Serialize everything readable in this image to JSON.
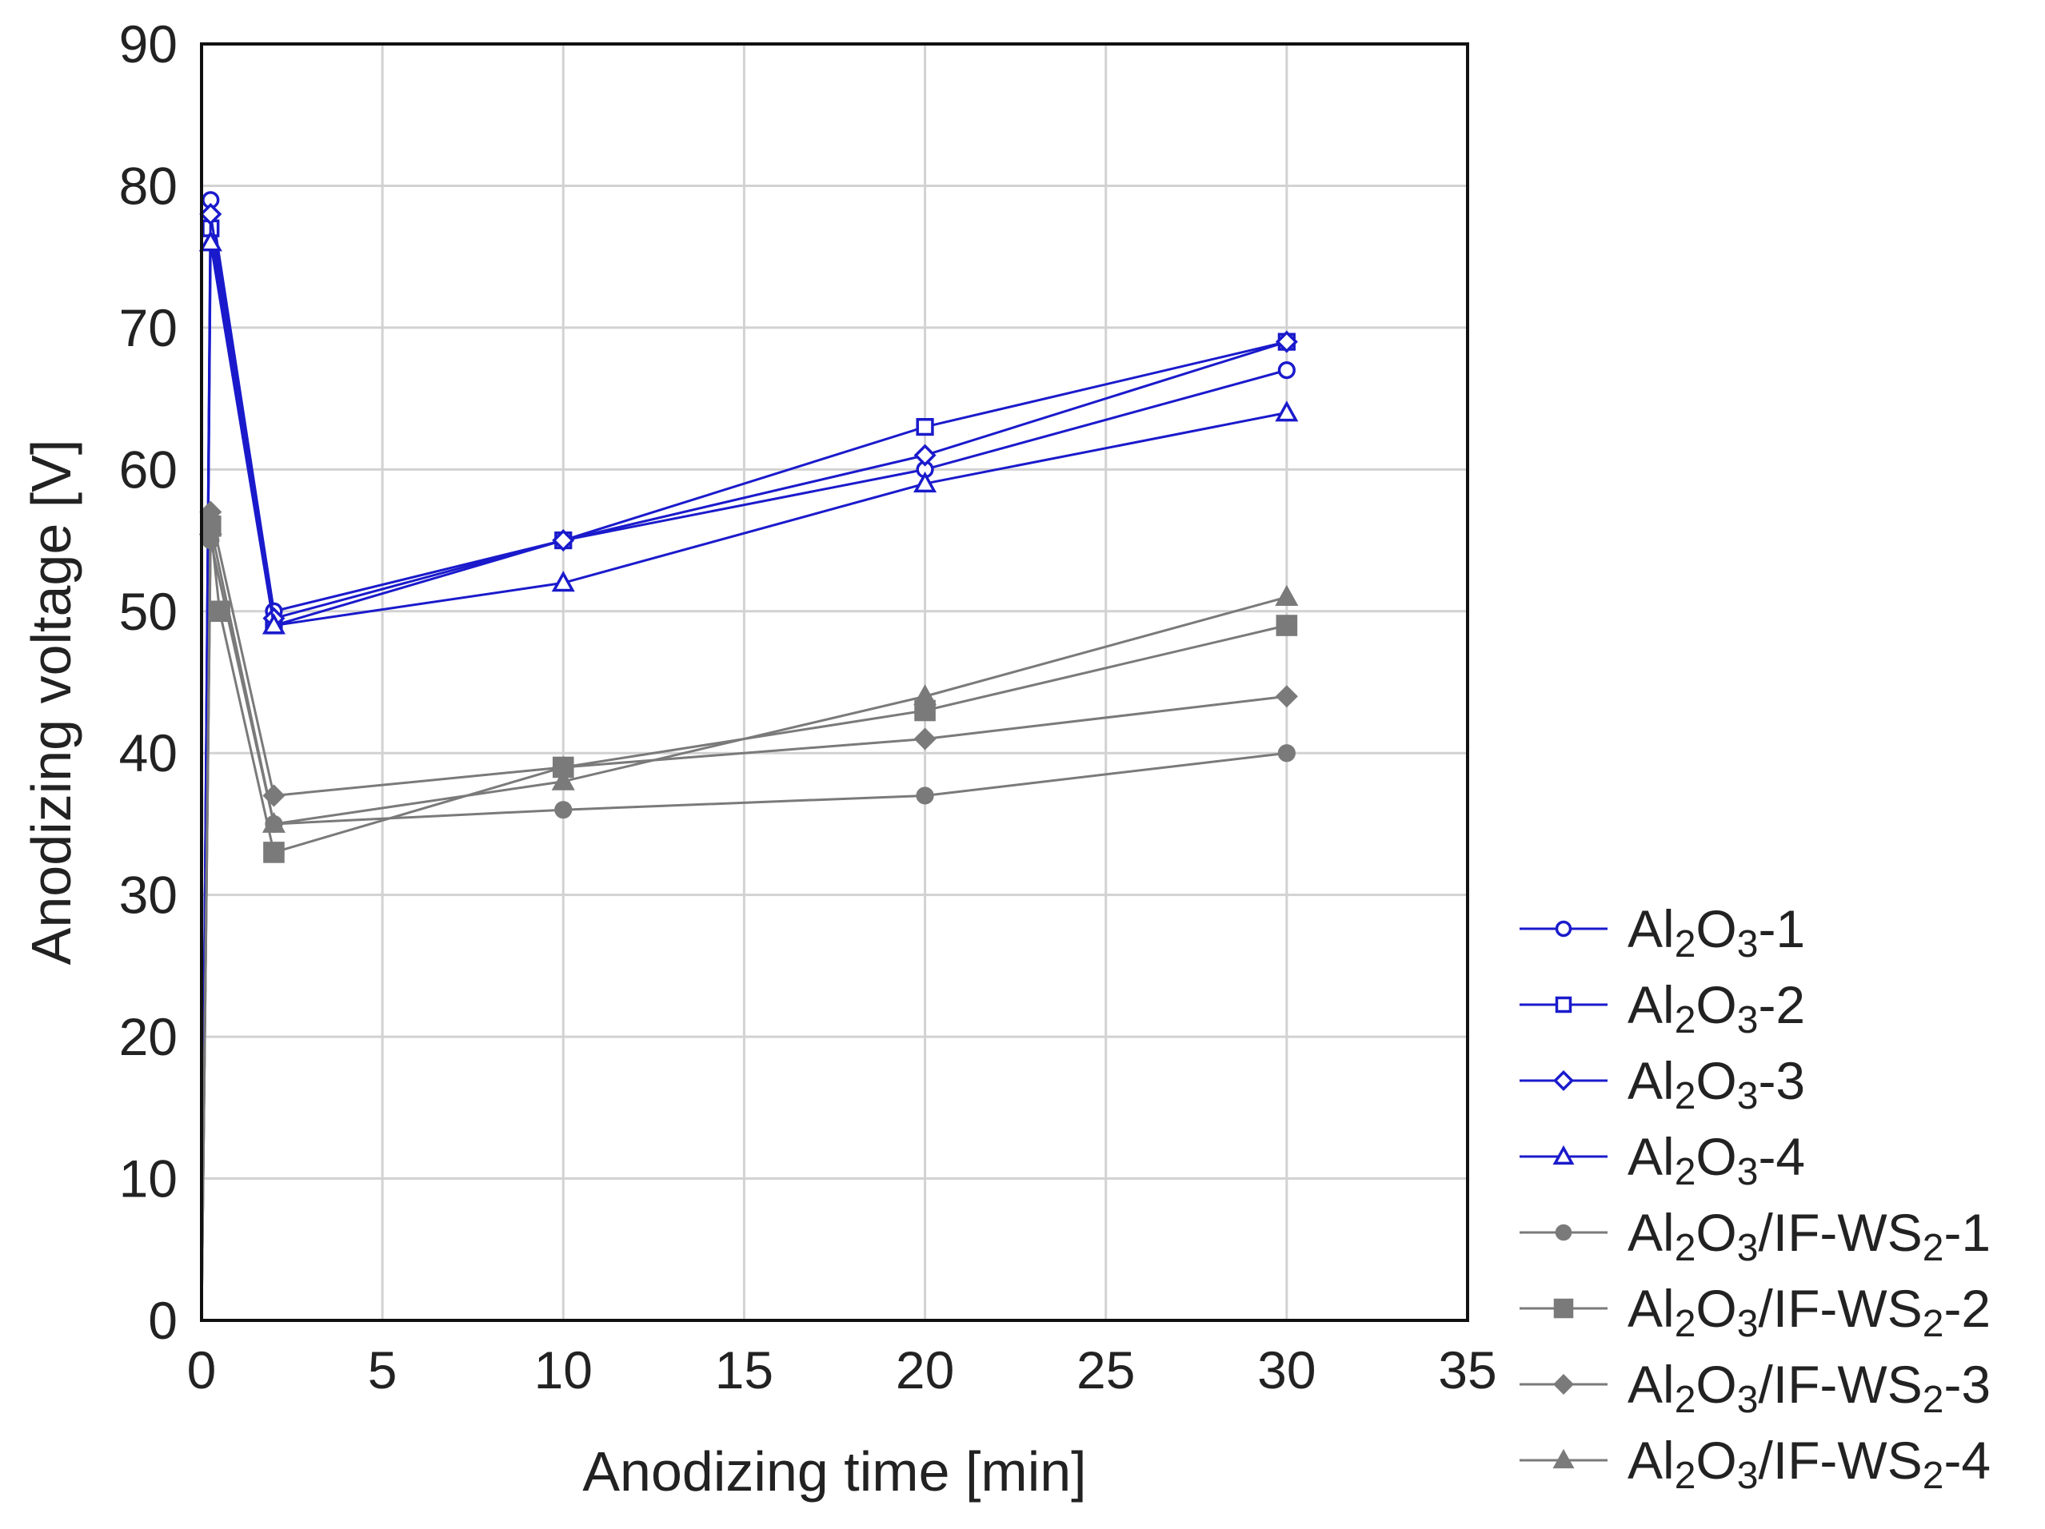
{
  "chart_data": {
    "type": "line",
    "title": "",
    "xlabel": "Anodizing time [min]",
    "ylabel": "Anodizing voltage [V]",
    "xlim": [
      0,
      35
    ],
    "ylim": [
      0,
      90
    ],
    "xticks": [
      0,
      5,
      10,
      15,
      20,
      25,
      30,
      35
    ],
    "yticks": [
      0,
      10,
      20,
      30,
      40,
      50,
      60,
      70,
      80,
      90
    ],
    "xtick_labels": [
      "0",
      "5",
      "10",
      "15",
      "20",
      "25",
      "30",
      "35"
    ],
    "ytick_labels": [
      "0",
      "10",
      "20",
      "30",
      "40",
      "50",
      "60",
      "70",
      "80",
      "90"
    ],
    "grid": true,
    "legend_position": "bottom-right outside",
    "series": [
      {
        "name": "Al2O3-1",
        "label": {
          "main": "Al",
          "sub1": "2",
          "mid": "O",
          "sub2": "3",
          "rest": "-1",
          "sub3": "",
          "tail": ""
        },
        "color": "#1a1acc",
        "marker": "circle-open",
        "x": [
          0,
          0.25,
          2,
          10,
          20,
          30
        ],
        "y": [
          0,
          79,
          50,
          55,
          60,
          67
        ]
      },
      {
        "name": "Al2O3-2",
        "label": {
          "main": "Al",
          "sub1": "2",
          "mid": "O",
          "sub2": "3",
          "rest": "-2",
          "sub3": "",
          "tail": ""
        },
        "color": "#1a1acc",
        "marker": "square-open",
        "x": [
          0,
          0.25,
          2,
          10,
          20,
          30
        ],
        "y": [
          0,
          77,
          49,
          55,
          63,
          69
        ]
      },
      {
        "name": "Al2O3-3",
        "label": {
          "main": "Al",
          "sub1": "2",
          "mid": "O",
          "sub2": "3",
          "rest": "-3",
          "sub3": "",
          "tail": ""
        },
        "color": "#1a1acc",
        "marker": "diamond-open",
        "x": [
          0,
          0.25,
          2,
          10,
          20,
          30
        ],
        "y": [
          0,
          78,
          49.5,
          55,
          61,
          69
        ]
      },
      {
        "name": "Al2O3-4",
        "label": {
          "main": "Al",
          "sub1": "2",
          "mid": "O",
          "sub2": "3",
          "rest": "-4",
          "sub3": "",
          "tail": ""
        },
        "color": "#1a1acc",
        "marker": "triangle-open",
        "x": [
          0,
          0.25,
          2,
          10,
          20,
          30
        ],
        "y": [
          0,
          76,
          49,
          52,
          59,
          64
        ]
      },
      {
        "name": "Al2O3/IF-WS2-1",
        "label": {
          "main": "Al",
          "sub1": "2",
          "mid": "O",
          "sub2": "3",
          "rest": "/IF-WS",
          "sub3": "2",
          "tail": "-1"
        },
        "color": "#7a7a7a",
        "marker": "circle-filled",
        "x": [
          0,
          0.25,
          2,
          10,
          20,
          30
        ],
        "y": [
          0,
          55,
          35,
          36,
          37,
          40
        ]
      },
      {
        "name": "Al2O3/IF-WS2-2",
        "label": {
          "main": "Al",
          "sub1": "2",
          "mid": "O",
          "sub2": "3",
          "rest": "/IF-WS",
          "sub3": "2",
          "tail": "-2"
        },
        "color": "#7a7a7a",
        "marker": "square-filled",
        "x": [
          0,
          0.25,
          0.5,
          2,
          10,
          20,
          30
        ],
        "y": [
          0,
          56,
          50,
          33,
          39,
          43,
          49
        ]
      },
      {
        "name": "Al2O3/IF-WS2-3",
        "label": {
          "main": "Al",
          "sub1": "2",
          "mid": "O",
          "sub2": "3",
          "rest": "/IF-WS",
          "sub3": "2",
          "tail": "-3"
        },
        "color": "#7a7a7a",
        "marker": "diamond-filled",
        "x": [
          0,
          0.25,
          2,
          10,
          20,
          30
        ],
        "y": [
          0,
          57,
          37,
          39,
          41,
          44
        ]
      },
      {
        "name": "Al2O3/IF-WS2-4",
        "label": {
          "main": "Al",
          "sub1": "2",
          "mid": "O",
          "sub2": "3",
          "rest": "/IF-WS",
          "sub3": "2",
          "tail": "-4"
        },
        "color": "#7a7a7a",
        "marker": "triangle-filled",
        "x": [
          0,
          0.25,
          2,
          10,
          20,
          30
        ],
        "y": [
          0,
          56,
          35,
          38,
          44,
          51
        ]
      }
    ]
  }
}
